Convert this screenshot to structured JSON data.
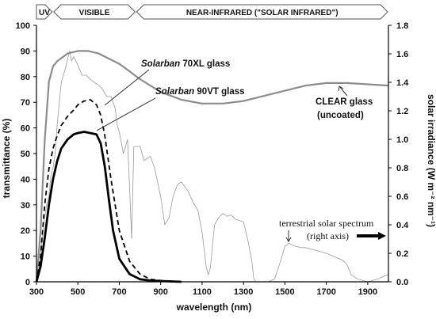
{
  "chart_data": {
    "type": "line",
    "xlabel": "wavelength (nm)",
    "ylabel": "transmittance (%)",
    "y2label": "solar irradiance (W m⁻² nm⁻¹)",
    "xlim": [
      300,
      2000
    ],
    "ylim": [
      0,
      100
    ],
    "y2lim": [
      0,
      1.8
    ],
    "x_ticks": [
      300,
      500,
      700,
      900,
      1100,
      1300,
      1500,
      1700,
      1900
    ],
    "y_ticks": [
      0,
      10,
      20,
      30,
      40,
      50,
      60,
      70,
      80,
      90,
      100
    ],
    "y2_ticks": [
      "0.0",
      "0.2",
      "0.4",
      "0.6",
      "0.8",
      "1.0",
      "1.2",
      "1.4",
      "1.6",
      "1.8"
    ],
    "grid": false,
    "spectral_bands": [
      {
        "label": "UV",
        "from": 300,
        "to": 380
      },
      {
        "label": "VISIBLE",
        "from": 380,
        "to": 780
      },
      {
        "label": "NEAR-INFRARED (\"SOLAR INFRARED\")",
        "from": 780,
        "to": 2000
      }
    ],
    "series": [
      {
        "id": "clear",
        "axis": "left",
        "style": "gray-thick",
        "x": [
          300,
          320,
          340,
          360,
          380,
          400,
          450,
          500,
          550,
          600,
          650,
          700,
          750,
          800,
          900,
          1000,
          1100,
          1200,
          1300,
          1400,
          1500,
          1600,
          1700,
          1800,
          1900,
          2000
        ],
        "y": [
          0,
          20,
          55,
          78,
          84,
          86,
          89,
          90,
          90,
          89,
          87,
          85,
          82,
          79,
          74,
          71,
          69.5,
          69.5,
          70.5,
          72.5,
          74.5,
          76.5,
          77.5,
          77.5,
          77,
          76.5
        ]
      },
      {
        "id": "70xl",
        "axis": "left",
        "style": "black-dashed",
        "x": [
          300,
          320,
          340,
          360,
          380,
          400,
          420,
          450,
          480,
          500,
          530,
          560,
          590,
          610,
          630,
          660,
          700,
          750,
          800,
          850,
          900,
          1000
        ],
        "y": [
          0,
          10,
          30,
          44,
          52,
          57,
          61,
          64.5,
          67,
          69,
          70.5,
          71,
          69,
          65,
          57,
          40,
          20,
          8,
          3,
          1,
          0.5,
          0
        ]
      },
      {
        "id": "90vt",
        "axis": "left",
        "style": "black-thick",
        "x": [
          300,
          320,
          340,
          360,
          380,
          400,
          420,
          450,
          480,
          500,
          530,
          560,
          590,
          610,
          630,
          650,
          670,
          700,
          750,
          800,
          850,
          900,
          1000
        ],
        "y": [
          0,
          6,
          17,
          30,
          40,
          47,
          52,
          55.5,
          57.5,
          58,
          58.5,
          58,
          57.5,
          54,
          45,
          32,
          20,
          9,
          3,
          1,
          0.5,
          0.3,
          0
        ]
      },
      {
        "id": "solar",
        "axis": "right",
        "style": "gray-thin",
        "x": [
          300,
          310,
          320,
          330,
          340,
          350,
          360,
          370,
          380,
          390,
          400,
          420,
          440,
          460,
          470,
          480,
          500,
          520,
          540,
          560,
          580,
          600,
          620,
          640,
          660,
          680,
          690,
          700,
          720,
          740,
          760,
          770,
          800,
          820,
          850,
          870,
          900,
          920,
          940,
          960,
          980,
          1000,
          1030,
          1060,
          1080,
          1100,
          1120,
          1130,
          1140,
          1150,
          1160,
          1180,
          1200,
          1220,
          1240,
          1260,
          1280,
          1300,
          1320,
          1340,
          1350,
          1360,
          1380,
          1400,
          1420,
          1450,
          1480,
          1500,
          1520,
          1550,
          1580,
          1600,
          1650,
          1700,
          1750,
          1780,
          1800,
          1820,
          1850,
          1900,
          1950,
          1980,
          2000
        ],
        "y": [
          0.0,
          0.05,
          0.2,
          0.35,
          0.45,
          0.55,
          0.6,
          0.75,
          0.8,
          0.9,
          1.1,
          1.4,
          1.5,
          1.62,
          1.55,
          1.58,
          1.52,
          1.45,
          1.45,
          1.42,
          1.4,
          1.38,
          1.35,
          1.3,
          1.3,
          1.22,
          1.1,
          1.05,
          0.9,
          1.0,
          0.3,
          0.95,
          0.95,
          0.85,
          0.88,
          0.8,
          0.6,
          0.4,
          0.45,
          0.6,
          0.68,
          0.7,
          0.64,
          0.55,
          0.5,
          0.35,
          0.1,
          0.05,
          0.1,
          0.25,
          0.4,
          0.45,
          0.48,
          0.46,
          0.47,
          0.44,
          0.43,
          0.42,
          0.3,
          0.15,
          0.02,
          0.0,
          0.0,
          0.0,
          0.0,
          0.02,
          0.15,
          0.25,
          0.27,
          0.25,
          0.24,
          0.24,
          0.22,
          0.2,
          0.17,
          0.15,
          0.12,
          0.05,
          0.02,
          0.0,
          0.02,
          0.04,
          0.05
        ]
      }
    ]
  },
  "annotations": {
    "solarban_70xl": {
      "brand": "Solarban",
      "rest": " 70XL glass"
    },
    "solarban_90vt": {
      "brand": "Solarban",
      "rest": " 90VT glass"
    },
    "clear_line1": "CLEAR glass",
    "clear_line2": "(uncoated)",
    "solar_line1": "terrestrial solar spectrum",
    "solar_line2": "(right axis)"
  },
  "colors": {
    "clear": "#8c8c8c",
    "coated": "#000000",
    "solar": "#9a9a9a",
    "band_outline": "#555555"
  }
}
